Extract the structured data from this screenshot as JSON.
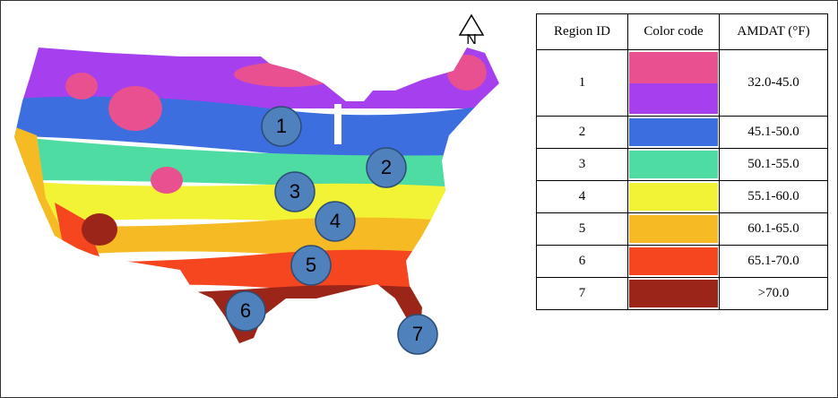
{
  "map": {
    "north_label": "N",
    "regions": [
      "1",
      "2",
      "3",
      "4",
      "5",
      "6",
      "7"
    ]
  },
  "table": {
    "header": [
      "Region ID",
      "Color code",
      "AMDAT (°F)"
    ],
    "rows": [
      {
        "id": "1",
        "range": "32.0-45.0",
        "colors": [
          "#e8508f",
          "#a640ee"
        ]
      },
      {
        "id": "2",
        "range": "45.1-50.0",
        "colors": [
          "#3c6ee0"
        ]
      },
      {
        "id": "3",
        "range": "50.1-55.0",
        "colors": [
          "#4fdca2"
        ]
      },
      {
        "id": "4",
        "range": "55.1-60.0",
        "colors": [
          "#f3f335"
        ]
      },
      {
        "id": "5",
        "range": "60.1-65.0",
        "colors": [
          "#f6bb24"
        ]
      },
      {
        "id": "6",
        "range": "65.1-70.0",
        "colors": [
          "#f5461f"
        ]
      },
      {
        "id": "7",
        "range": ">70.0",
        "colors": [
          "#9c2519"
        ]
      }
    ]
  }
}
